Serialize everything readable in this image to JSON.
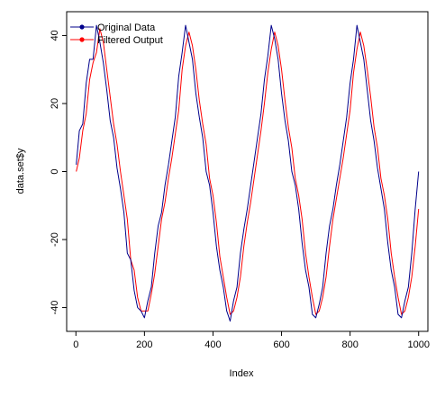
{
  "chart_data": {
    "type": "line",
    "xlabel": "Index",
    "ylabel": "data.set$y",
    "xlim": [
      -27,
      1027
    ],
    "ylim": [
      -47,
      47
    ],
    "xticks": [
      "0",
      "200",
      "400",
      "600",
      "800",
      "1000"
    ],
    "yticks": [
      "-40",
      "-20",
      "0",
      "20",
      "40"
    ],
    "legend": {
      "position": "top-left"
    },
    "series": [
      {
        "name": "Original Data",
        "color": "#00008b",
        "x": [
          1,
          10,
          20,
          30,
          40,
          50,
          60,
          70,
          80,
          90,
          100,
          110,
          120,
          130,
          140,
          150,
          160,
          170,
          180,
          190,
          200,
          210,
          220,
          230,
          240,
          250,
          260,
          270,
          280,
          290,
          300,
          310,
          320,
          330,
          340,
          350,
          360,
          370,
          380,
          390,
          400,
          410,
          420,
          430,
          440,
          450,
          460,
          470,
          480,
          490,
          500,
          510,
          520,
          530,
          540,
          550,
          560,
          570,
          580,
          590,
          600,
          610,
          620,
          630,
          640,
          650,
          660,
          670,
          680,
          690,
          700,
          710,
          720,
          730,
          740,
          750,
          760,
          770,
          780,
          790,
          800,
          810,
          820,
          830,
          840,
          850,
          860,
          870,
          880,
          890,
          900,
          910,
          920,
          930,
          940,
          950,
          960,
          970,
          980,
          990,
          1000
        ],
        "y": [
          2,
          12,
          14,
          26,
          33,
          33,
          43,
          38,
          32,
          24,
          15,
          10,
          1,
          -5,
          -12,
          -24,
          -26,
          -35,
          -40,
          -41,
          -43,
          -38,
          -34,
          -24,
          -16,
          -12,
          -4,
          2,
          9,
          16,
          28,
          35,
          43,
          38,
          33,
          23,
          16,
          10,
          0,
          -4,
          -12,
          -22,
          -29,
          -34,
          -41,
          -44,
          -38,
          -34,
          -24,
          -17,
          -11,
          -4,
          3,
          10,
          17,
          27,
          34,
          43,
          39,
          33,
          23,
          15,
          9,
          0,
          -4,
          -11,
          -21,
          -29,
          -34,
          -42,
          -43,
          -39,
          -34,
          -24,
          -16,
          -11,
          -4,
          2,
          9,
          16,
          26,
          33,
          43,
          38,
          33,
          24,
          15,
          9,
          1,
          -5,
          -11,
          -21,
          -29,
          -34,
          -42,
          -43,
          -38,
          -34,
          -24,
          -11,
          0
        ]
      },
      {
        "name": "Filtered Output",
        "color": "#ff0000",
        "x": [
          1,
          10,
          20,
          30,
          40,
          50,
          60,
          70,
          80,
          90,
          100,
          110,
          120,
          130,
          140,
          150,
          160,
          170,
          180,
          190,
          200,
          210,
          220,
          230,
          240,
          250,
          260,
          270,
          280,
          290,
          300,
          310,
          320,
          330,
          340,
          350,
          360,
          370,
          380,
          390,
          400,
          410,
          420,
          430,
          440,
          450,
          460,
          470,
          480,
          490,
          500,
          510,
          520,
          530,
          540,
          550,
          560,
          570,
          580,
          590,
          600,
          610,
          620,
          630,
          640,
          650,
          660,
          670,
          680,
          690,
          700,
          710,
          720,
          730,
          740,
          750,
          760,
          770,
          780,
          790,
          800,
          810,
          820,
          830,
          840,
          850,
          860,
          870,
          880,
          890,
          900,
          910,
          920,
          930,
          940,
          950,
          960,
          970,
          980,
          990,
          1000
        ],
        "y": [
          0,
          4,
          12,
          17,
          27,
          32,
          35,
          42,
          38,
          30,
          22,
          14,
          8,
          0,
          -7,
          -14,
          -26,
          -29,
          -37,
          -41,
          -41,
          -41,
          -36,
          -30,
          -22,
          -14,
          -9,
          -2,
          4,
          11,
          18,
          30,
          37,
          41,
          37,
          30,
          21,
          14,
          8,
          -2,
          -7,
          -15,
          -25,
          -31,
          -37,
          -42,
          -41,
          -37,
          -31,
          -22,
          -15,
          -9,
          -2,
          5,
          12,
          20,
          29,
          36,
          41,
          37,
          30,
          21,
          13,
          7,
          -2,
          -7,
          -14,
          -24,
          -31,
          -37,
          -42,
          -41,
          -37,
          -31,
          -22,
          -14,
          -8,
          -2,
          4,
          11,
          18,
          29,
          36,
          41,
          37,
          30,
          22,
          13,
          7,
          -2,
          -7,
          -14,
          -24,
          -31,
          -37,
          -42,
          -41,
          -37,
          -31,
          -22,
          -11
        ]
      }
    ]
  }
}
